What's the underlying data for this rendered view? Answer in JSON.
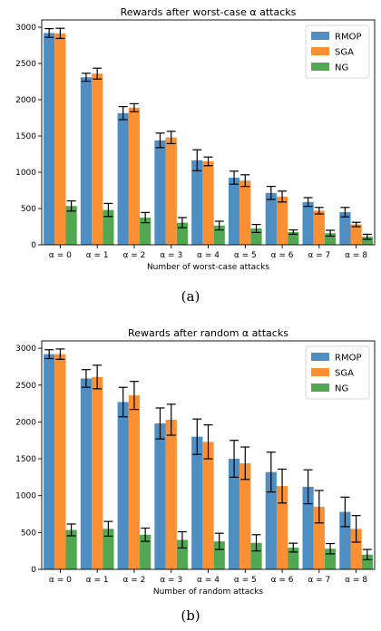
{
  "chart_data": [
    {
      "type": "bar",
      "title": "Rewards after worst-case α attacks",
      "xlabel": "Number of worst-case attacks",
      "ylabel": "",
      "ylim": [
        0,
        3100
      ],
      "yticks": [
        0,
        500,
        1000,
        1500,
        2000,
        2500,
        3000
      ],
      "categories": [
        "α = 0",
        "α = 1",
        "α = 2",
        "α = 3",
        "α = 4",
        "α = 5",
        "α = 6",
        "α = 7",
        "α = 8"
      ],
      "legend_position": "top-right",
      "grid": false,
      "series": [
        {
          "name": "RMOP",
          "color": "#4f8ec2",
          "values": [
            2920,
            2310,
            1815,
            1440,
            1165,
            925,
            715,
            590,
            450
          ],
          "errors": [
            60,
            55,
            90,
            100,
            145,
            90,
            90,
            60,
            65
          ]
        },
        {
          "name": "SGA",
          "color": "#fa8f34",
          "values": [
            2915,
            2360,
            1890,
            1480,
            1150,
            885,
            665,
            470,
            280
          ],
          "errors": [
            70,
            75,
            55,
            85,
            60,
            80,
            75,
            45,
            30
          ]
        },
        {
          "name": "NG",
          "color": "#52a852",
          "values": [
            535,
            480,
            375,
            305,
            265,
            225,
            175,
            160,
            110
          ],
          "errors": [
            70,
            90,
            70,
            70,
            60,
            55,
            30,
            40,
            35
          ]
        }
      ]
    },
    {
      "type": "bar",
      "title": "Rewards after random α attacks",
      "xlabel": "Number of random attacks",
      "ylabel": "",
      "ylim": [
        0,
        3100
      ],
      "yticks": [
        0,
        500,
        1000,
        1500,
        2000,
        2500,
        3000
      ],
      "categories": [
        "α = 0",
        "α = 1",
        "α = 2",
        "α = 3",
        "α = 4",
        "α = 5",
        "α = 6",
        "α = 7",
        "α = 8"
      ],
      "legend_position": "top-right",
      "grid": false,
      "series": [
        {
          "name": "RMOP",
          "color": "#4f8ec2",
          "values": [
            2920,
            2590,
            2270,
            1980,
            1800,
            1500,
            1320,
            1120,
            780
          ],
          "errors": [
            60,
            120,
            200,
            210,
            240,
            250,
            270,
            230,
            200
          ]
        },
        {
          "name": "SGA",
          "color": "#fa8f34",
          "values": [
            2920,
            2610,
            2360,
            2030,
            1730,
            1440,
            1130,
            850,
            550
          ],
          "errors": [
            70,
            160,
            190,
            210,
            230,
            220,
            230,
            220,
            180
          ]
        },
        {
          "name": "NG",
          "color": "#52a852",
          "values": [
            535,
            550,
            470,
            400,
            380,
            360,
            295,
            280,
            200
          ],
          "errors": [
            80,
            100,
            90,
            110,
            110,
            110,
            60,
            70,
            70
          ]
        }
      ]
    }
  ],
  "captions": [
    "(a)",
    "(b)"
  ]
}
